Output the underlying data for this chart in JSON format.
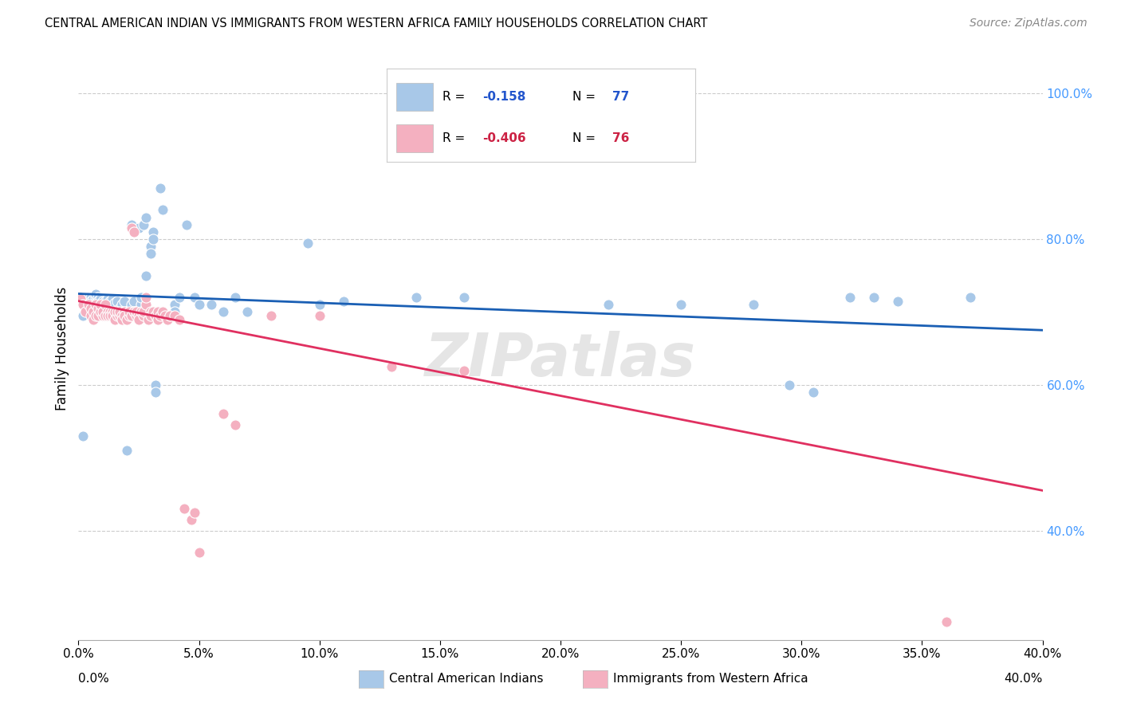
{
  "title": "CENTRAL AMERICAN INDIAN VS IMMIGRANTS FROM WESTERN AFRICA FAMILY HOUSEHOLDS CORRELATION CHART",
  "source": "Source: ZipAtlas.com",
  "ylabel": "Family Households",
  "ylabel_right_ticks": [
    "100.0%",
    "80.0%",
    "60.0%",
    "40.0%"
  ],
  "ylabel_right_values": [
    1.0,
    0.8,
    0.6,
    0.4
  ],
  "blue_color": "#a8c8e8",
  "pink_color": "#f4b0c0",
  "blue_line_color": "#1a5fb4",
  "pink_line_color": "#e03060",
  "watermark": "ZIPatlas",
  "blue_scatter": [
    [
      0.001,
      0.72
    ],
    [
      0.002,
      0.695
    ],
    [
      0.003,
      0.71
    ],
    [
      0.004,
      0.72
    ],
    [
      0.005,
      0.72
    ],
    [
      0.005,
      0.715
    ],
    [
      0.006,
      0.7
    ],
    [
      0.006,
      0.695
    ],
    [
      0.006,
      0.718
    ],
    [
      0.007,
      0.72
    ],
    [
      0.007,
      0.712
    ],
    [
      0.007,
      0.725
    ],
    [
      0.008,
      0.72
    ],
    [
      0.008,
      0.715
    ],
    [
      0.008,
      0.7
    ],
    [
      0.009,
      0.71
    ],
    [
      0.009,
      0.715
    ],
    [
      0.009,
      0.718
    ],
    [
      0.01,
      0.715
    ],
    [
      0.01,
      0.7
    ],
    [
      0.01,
      0.71
    ],
    [
      0.011,
      0.715
    ],
    [
      0.011,
      0.7
    ],
    [
      0.012,
      0.718
    ],
    [
      0.012,
      0.71
    ],
    [
      0.013,
      0.715
    ],
    [
      0.013,
      0.7
    ],
    [
      0.014,
      0.71
    ],
    [
      0.014,
      0.718
    ],
    [
      0.015,
      0.7
    ],
    [
      0.015,
      0.695
    ],
    [
      0.015,
      0.712
    ],
    [
      0.016,
      0.715
    ],
    [
      0.016,
      0.7
    ],
    [
      0.017,
      0.705
    ],
    [
      0.017,
      0.695
    ],
    [
      0.018,
      0.71
    ],
    [
      0.018,
      0.7
    ],
    [
      0.019,
      0.715
    ],
    [
      0.019,
      0.695
    ],
    [
      0.02,
      0.7
    ],
    [
      0.021,
      0.695
    ],
    [
      0.022,
      0.71
    ],
    [
      0.022,
      0.815
    ],
    [
      0.022,
      0.82
    ],
    [
      0.023,
      0.715
    ],
    [
      0.023,
      0.7
    ],
    [
      0.024,
      0.7
    ],
    [
      0.024,
      0.695
    ],
    [
      0.025,
      0.7
    ],
    [
      0.025,
      0.815
    ],
    [
      0.026,
      0.71
    ],
    [
      0.026,
      0.72
    ],
    [
      0.027,
      0.82
    ],
    [
      0.028,
      0.83
    ],
    [
      0.028,
      0.75
    ],
    [
      0.03,
      0.79
    ],
    [
      0.03,
      0.78
    ],
    [
      0.031,
      0.81
    ],
    [
      0.031,
      0.8
    ],
    [
      0.034,
      0.87
    ],
    [
      0.035,
      0.84
    ],
    [
      0.04,
      0.71
    ],
    [
      0.04,
      0.7
    ],
    [
      0.042,
      0.72
    ],
    [
      0.045,
      0.82
    ],
    [
      0.048,
      0.72
    ],
    [
      0.05,
      0.71
    ],
    [
      0.055,
      0.71
    ],
    [
      0.06,
      0.7
    ],
    [
      0.065,
      0.72
    ],
    [
      0.07,
      0.7
    ],
    [
      0.095,
      0.795
    ],
    [
      0.1,
      0.71
    ],
    [
      0.11,
      0.715
    ],
    [
      0.14,
      0.72
    ],
    [
      0.002,
      0.53
    ],
    [
      0.02,
      0.51
    ],
    [
      0.032,
      0.6
    ],
    [
      0.032,
      0.59
    ],
    [
      0.16,
      0.72
    ],
    [
      0.22,
      0.71
    ],
    [
      0.25,
      0.71
    ],
    [
      0.34,
      0.715
    ],
    [
      0.28,
      0.71
    ],
    [
      0.295,
      0.6
    ],
    [
      0.305,
      0.59
    ],
    [
      0.32,
      0.72
    ],
    [
      0.33,
      0.72
    ],
    [
      0.37,
      0.72
    ]
  ],
  "pink_scatter": [
    [
      0.001,
      0.718
    ],
    [
      0.002,
      0.71
    ],
    [
      0.003,
      0.7
    ],
    [
      0.004,
      0.71
    ],
    [
      0.005,
      0.705
    ],
    [
      0.005,
      0.695
    ],
    [
      0.006,
      0.7
    ],
    [
      0.006,
      0.69
    ],
    [
      0.007,
      0.695
    ],
    [
      0.007,
      0.71
    ],
    [
      0.008,
      0.705
    ],
    [
      0.008,
      0.695
    ],
    [
      0.009,
      0.7
    ],
    [
      0.009,
      0.71
    ],
    [
      0.01,
      0.695
    ],
    [
      0.01,
      0.7
    ],
    [
      0.011,
      0.695
    ],
    [
      0.011,
      0.71
    ],
    [
      0.012,
      0.7
    ],
    [
      0.012,
      0.695
    ],
    [
      0.013,
      0.7
    ],
    [
      0.013,
      0.695
    ],
    [
      0.014,
      0.7
    ],
    [
      0.014,
      0.695
    ],
    [
      0.015,
      0.7
    ],
    [
      0.015,
      0.69
    ],
    [
      0.016,
      0.695
    ],
    [
      0.016,
      0.7
    ],
    [
      0.017,
      0.695
    ],
    [
      0.017,
      0.7
    ],
    [
      0.018,
      0.695
    ],
    [
      0.018,
      0.69
    ],
    [
      0.019,
      0.7
    ],
    [
      0.019,
      0.695
    ],
    [
      0.02,
      0.69
    ],
    [
      0.021,
      0.695
    ],
    [
      0.021,
      0.7
    ],
    [
      0.022,
      0.695
    ],
    [
      0.022,
      0.815
    ],
    [
      0.023,
      0.81
    ],
    [
      0.023,
      0.7
    ],
    [
      0.024,
      0.695
    ],
    [
      0.024,
      0.7
    ],
    [
      0.025,
      0.695
    ],
    [
      0.025,
      0.69
    ],
    [
      0.026,
      0.7
    ],
    [
      0.027,
      0.695
    ],
    [
      0.027,
      0.7
    ],
    [
      0.028,
      0.71
    ],
    [
      0.028,
      0.72
    ],
    [
      0.029,
      0.69
    ],
    [
      0.03,
      0.7
    ],
    [
      0.03,
      0.695
    ],
    [
      0.031,
      0.7
    ],
    [
      0.032,
      0.695
    ],
    [
      0.033,
      0.7
    ],
    [
      0.033,
      0.69
    ],
    [
      0.034,
      0.695
    ],
    [
      0.035,
      0.7
    ],
    [
      0.036,
      0.695
    ],
    [
      0.037,
      0.69
    ],
    [
      0.038,
      0.695
    ],
    [
      0.04,
      0.695
    ],
    [
      0.042,
      0.69
    ],
    [
      0.044,
      0.43
    ],
    [
      0.047,
      0.415
    ],
    [
      0.048,
      0.425
    ],
    [
      0.05,
      0.37
    ],
    [
      0.06,
      0.56
    ],
    [
      0.065,
      0.545
    ],
    [
      0.08,
      0.695
    ],
    [
      0.1,
      0.695
    ],
    [
      0.13,
      0.625
    ],
    [
      0.16,
      0.62
    ],
    [
      0.36,
      0.275
    ]
  ],
  "blue_trendline": {
    "x": [
      0.0,
      0.4
    ],
    "y": [
      0.725,
      0.675
    ]
  },
  "pink_trendline": {
    "x": [
      0.0,
      0.4
    ],
    "y": [
      0.715,
      0.455
    ]
  },
  "xmin": 0.0,
  "xmax": 0.4,
  "ymin": 0.25,
  "ymax": 1.05
}
